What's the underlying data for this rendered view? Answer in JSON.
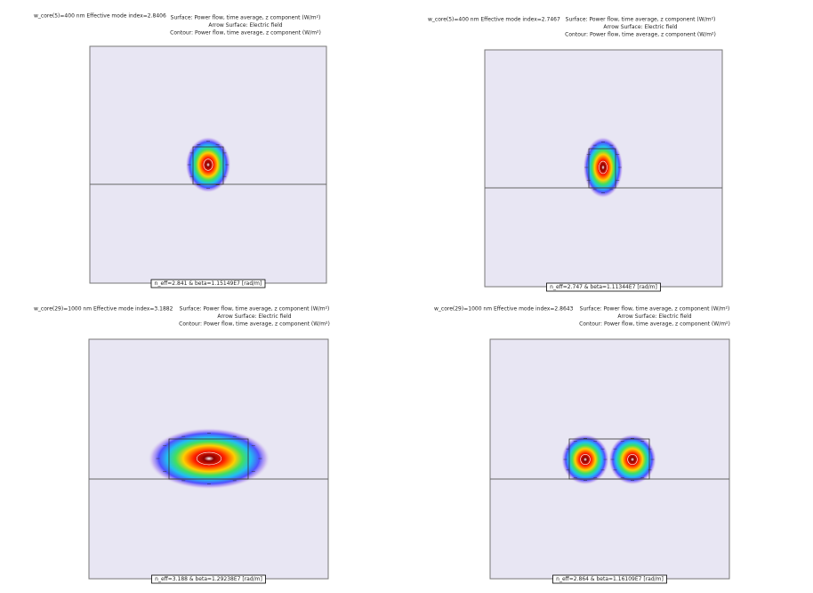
{
  "panels": [
    {
      "title": "w_core(5)=400 nm Effective mode index=2.8406",
      "legend": [
        "Surface: Power flow, time average, z component (W/m²)",
        "Arrow Surface: Electric field",
        "Contour: Power flow, time average, z component (W/m²)"
      ],
      "caption": "n_eff=2.841 & beta=1.15149E7 [rad/m]"
    },
    {
      "title": "w_core(5)=400 nm Effective mode index=2.7467",
      "legend": [
        "Surface: Power flow, time average, z component (W/m²)",
        "Arrow Surface: Electric field",
        "Contour: Power flow, time average, z component (W/m²)"
      ],
      "caption": "n_eff=2.747 & beta=1.11344E7 [rad/m]"
    },
    {
      "title": "w_core(29)=1000 nm Effective mode index=3.1882",
      "legend": [
        "Surface: Power flow, time average, z component (W/m²)",
        "Arrow Surface: Electric field",
        "Contour: Power flow, time average, z component (W/m²)"
      ],
      "caption": "n_eff=3.188 & beta=1.29238E7 [rad/m]"
    },
    {
      "title": "w_core(29)=1000 nm Effective mode index=2.8643",
      "legend": [
        "Surface: Power flow, time average, z component (W/m²)",
        "Arrow Surface: Electric field",
        "Contour: Power flow, time average, z component (W/m²)"
      ],
      "caption": "n_eff=2.864 & beta=1.16109E7 [rad/m]"
    }
  ]
}
